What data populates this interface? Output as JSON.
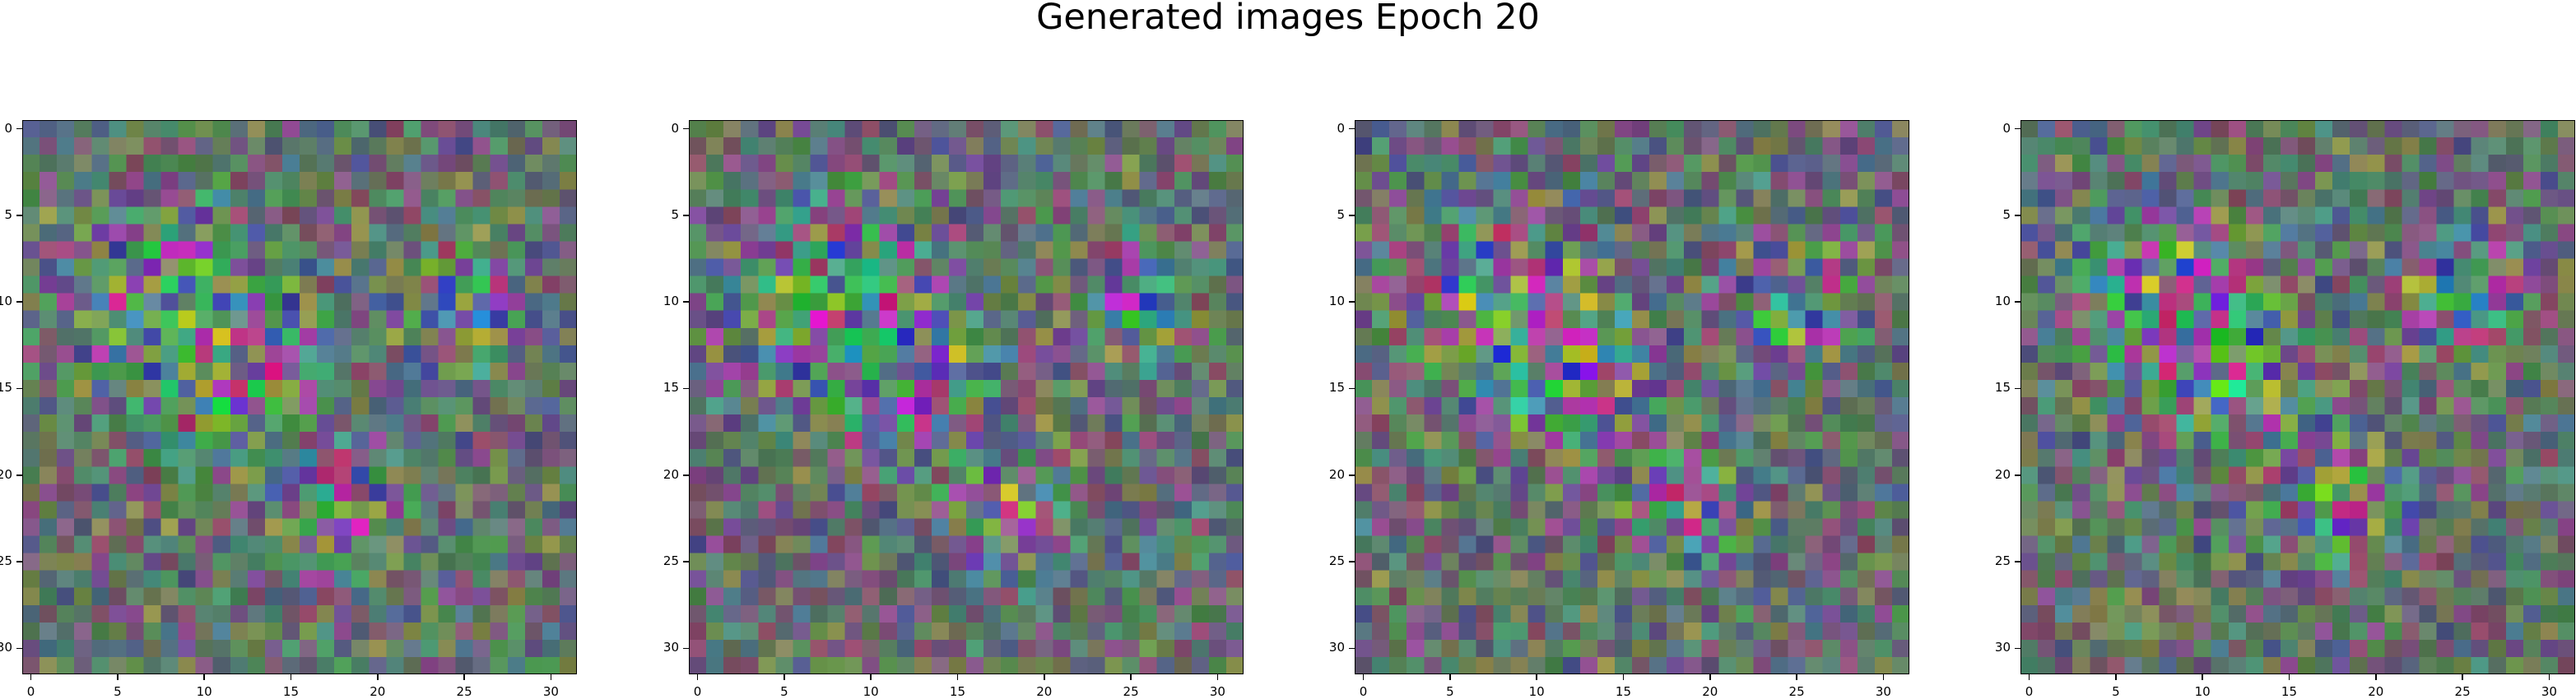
{
  "figure": {
    "title": "Generated images Epoch 20"
  },
  "chart_data": [
    {
      "type": "heatmap",
      "title": "",
      "xlabel": "",
      "ylabel": "",
      "grid_size": [
        32,
        32
      ],
      "xlim": [
        -0.5,
        31.5
      ],
      "ylim": [
        31.5,
        -0.5
      ],
      "xticks": [
        0,
        5,
        10,
        15,
        20,
        25,
        30
      ],
      "yticks": [
        0,
        5,
        10,
        15,
        20,
        25,
        30
      ],
      "seed": 11,
      "grid": false
    },
    {
      "type": "heatmap",
      "title": "",
      "xlabel": "",
      "ylabel": "",
      "grid_size": [
        32,
        32
      ],
      "xlim": [
        -0.5,
        31.5
      ],
      "ylim": [
        31.5,
        -0.5
      ],
      "xticks": [
        0,
        5,
        10,
        15,
        20,
        25,
        30
      ],
      "yticks": [
        0,
        5,
        10,
        15,
        20,
        25,
        30
      ],
      "seed": 23,
      "grid": false
    },
    {
      "type": "heatmap",
      "title": "",
      "xlabel": "",
      "ylabel": "",
      "grid_size": [
        32,
        32
      ],
      "xlim": [
        -0.5,
        31.5
      ],
      "ylim": [
        31.5,
        -0.5
      ],
      "xticks": [
        0,
        5,
        10,
        15,
        20,
        25,
        30
      ],
      "yticks": [
        0,
        5,
        10,
        15,
        20,
        25,
        30
      ],
      "seed": 37,
      "grid": false
    },
    {
      "type": "heatmap",
      "title": "",
      "xlabel": "",
      "ylabel": "",
      "grid_size": [
        32,
        32
      ],
      "xlim": [
        -0.5,
        31.5
      ],
      "ylim": [
        31.5,
        -0.5
      ],
      "xticks": [
        0,
        5,
        10,
        15,
        20,
        25,
        30
      ],
      "yticks": [
        0,
        5,
        10,
        15,
        20,
        25,
        30
      ],
      "seed": 53,
      "grid": false
    }
  ]
}
